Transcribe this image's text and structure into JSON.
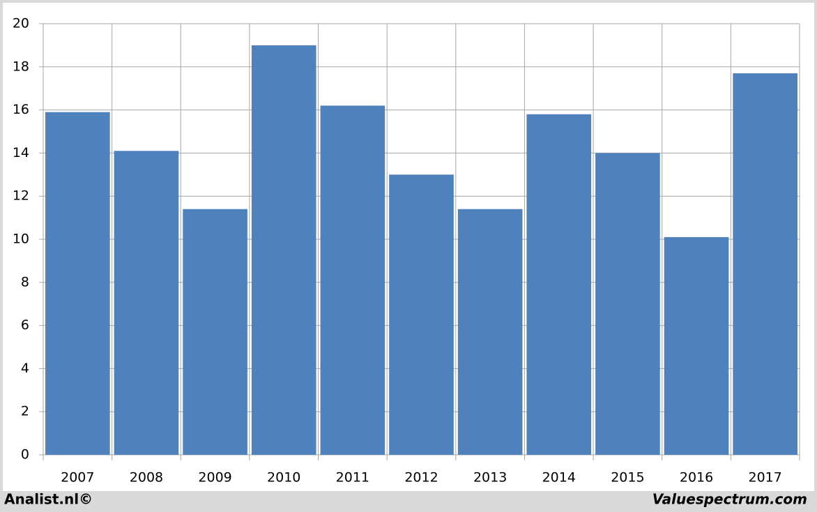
{
  "chart_data": {
    "type": "bar",
    "categories": [
      "2007",
      "2008",
      "2009",
      "2010",
      "2011",
      "2012",
      "2013",
      "2014",
      "2015",
      "2016",
      "2017"
    ],
    "values": [
      15.9,
      14.1,
      11.4,
      19.0,
      16.2,
      13.0,
      11.4,
      15.8,
      14.0,
      10.1,
      17.7
    ],
    "color": "#4f81bd",
    "ylim": [
      0,
      20
    ],
    "yticks": [
      0,
      2,
      4,
      6,
      8,
      10,
      12,
      14,
      16,
      18,
      20
    ],
    "grid": true
  },
  "footer": {
    "left": "Analist.nl©",
    "right": "Valuespectrum.com"
  }
}
